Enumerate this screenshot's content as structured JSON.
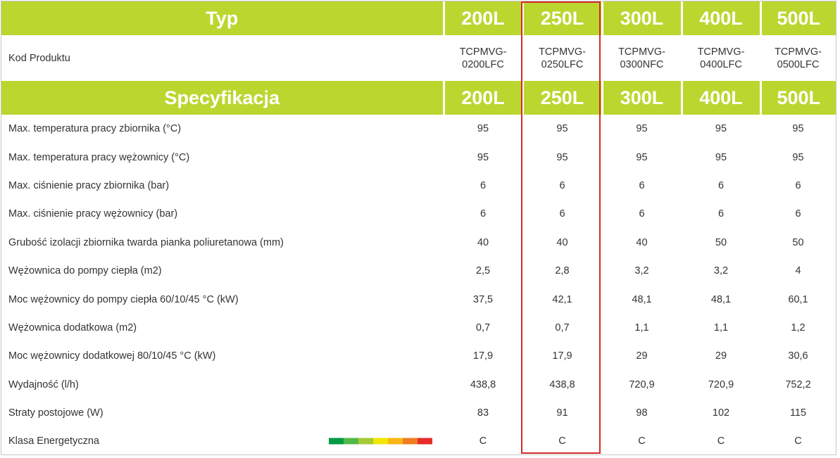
{
  "header": {
    "type_label": "Typ",
    "sizes": [
      "200L",
      "250L",
      "300L",
      "400L",
      "500L"
    ]
  },
  "product_code": {
    "label": "Kod Produktu",
    "codes": [
      [
        "TCPMVG-",
        "0200LFC"
      ],
      [
        "TCPMVG-",
        "0250LFC"
      ],
      [
        "TCPMVG-",
        "0300NFC"
      ],
      [
        "TCPMVG-",
        "0400LFC"
      ],
      [
        "TCPMVG-",
        "0500LFC"
      ]
    ]
  },
  "spec_header": {
    "label": "Specyfikacja",
    "sizes": [
      "200L",
      "250L",
      "300L",
      "400L",
      "500L"
    ]
  },
  "rows": [
    {
      "label": "Max. temperatura pracy zbiornika (°C)",
      "values": [
        "95",
        "95",
        "95",
        "95",
        "95"
      ]
    },
    {
      "label": "Max. temperatura pracy wężownicy (°C)",
      "values": [
        "95",
        "95",
        "95",
        "95",
        "95"
      ]
    },
    {
      "label": "Max. ciśnienie pracy zbiornika (bar)",
      "values": [
        "6",
        "6",
        "6",
        "6",
        "6"
      ]
    },
    {
      "label": "Max. ciśnienie pracy wężownicy (bar)",
      "values": [
        "6",
        "6",
        "6",
        "6",
        "6"
      ]
    },
    {
      "label": "Grubość izolacji zbiornika twarda pianka poliuretanowa  (mm)",
      "values": [
        "40",
        "40",
        "40",
        "50",
        "50"
      ]
    },
    {
      "label": "Wężownica do pompy ciepła (m2)",
      "values": [
        "2,5",
        "2,8",
        "3,2",
        "3,2",
        "4"
      ]
    },
    {
      "label": "Moc wężownicy do pompy ciepła  60/10/45 °C (kW)",
      "values": [
        "37,5",
        "42,1",
        "48,1",
        "48,1",
        "60,1"
      ]
    },
    {
      "label": "Wężownica dodatkowa (m2)",
      "values": [
        "0,7",
        "0,7",
        "1,1",
        "1,1",
        "1,2"
      ]
    },
    {
      "label": "Moc wężownicy dodatkowej 80/10/45 °C (kW)",
      "values": [
        "17,9",
        "17,9",
        "29",
        "29",
        "30,6"
      ]
    },
    {
      "label": "Wydajność (l/h)",
      "values": [
        "438,8",
        "438,8",
        "720,9",
        "720,9",
        "752,2"
      ]
    },
    {
      "label": "Straty postojowe (W)",
      "values": [
        "83",
        "91",
        "98",
        "102",
        "115"
      ]
    },
    {
      "label": "Klasa Energetyczna",
      "values": [
        "C",
        "C",
        "C",
        "C",
        "C"
      ]
    }
  ],
  "energy_scale_colors": [
    "#009a44",
    "#52b848",
    "#a6c937",
    "#f2e600",
    "#fbb615",
    "#ef7d22",
    "#e62d29"
  ],
  "highlight_color": "#d62828",
  "header_color": "#bcd630"
}
